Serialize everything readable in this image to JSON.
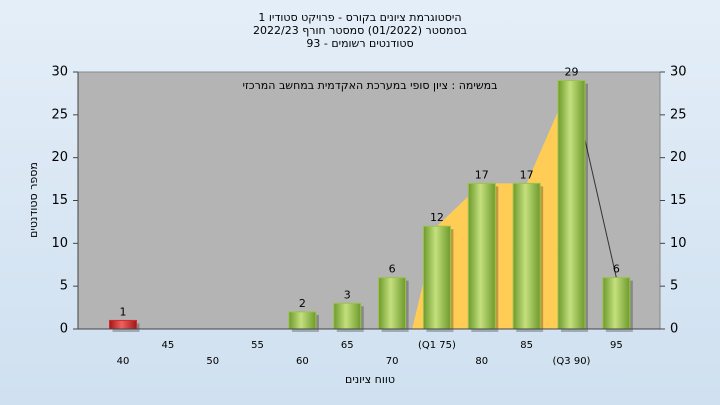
{
  "chart_data": {
    "type": "bar",
    "title": [
      "היסטוגרמת ציונים בקורס - פרויקט סטודיו 1",
      "בסמסטר  (01/2022)  סמסטר חורף 2022/23",
      "סטודנטים רשומים - 93"
    ],
    "annotation": "במשימה : ציון סופי במערכת האקדמית במחשב המרכזי",
    "x_label": "טווח ציונים",
    "y_label": "מספר סטודנטים",
    "categories": [
      "40",
      "45",
      "50",
      "55",
      "60",
      "65",
      "70",
      "(Q1 75)",
      "80",
      "85",
      "(Q3 90)",
      "95"
    ],
    "values": [
      1,
      0,
      0,
      0,
      2,
      3,
      6,
      12,
      17,
      17,
      29,
      6
    ],
    "colors": [
      "#d42a2a",
      "#9dc24e",
      "#9dc24e",
      "#9dc24e",
      "#9dc24e",
      "#9dc24e",
      "#9dc24e",
      "#9dc24e",
      "#9dc24e",
      "#9dc24e",
      "#9dc24e",
      "#9dc24e"
    ],
    "ylim": [
      0,
      30
    ],
    "yticks": [
      0,
      5,
      10,
      15,
      20,
      25,
      30
    ],
    "y2lim": [
      0,
      30
    ],
    "y2ticks": [
      0,
      5,
      10,
      15,
      20,
      25,
      30
    ]
  }
}
